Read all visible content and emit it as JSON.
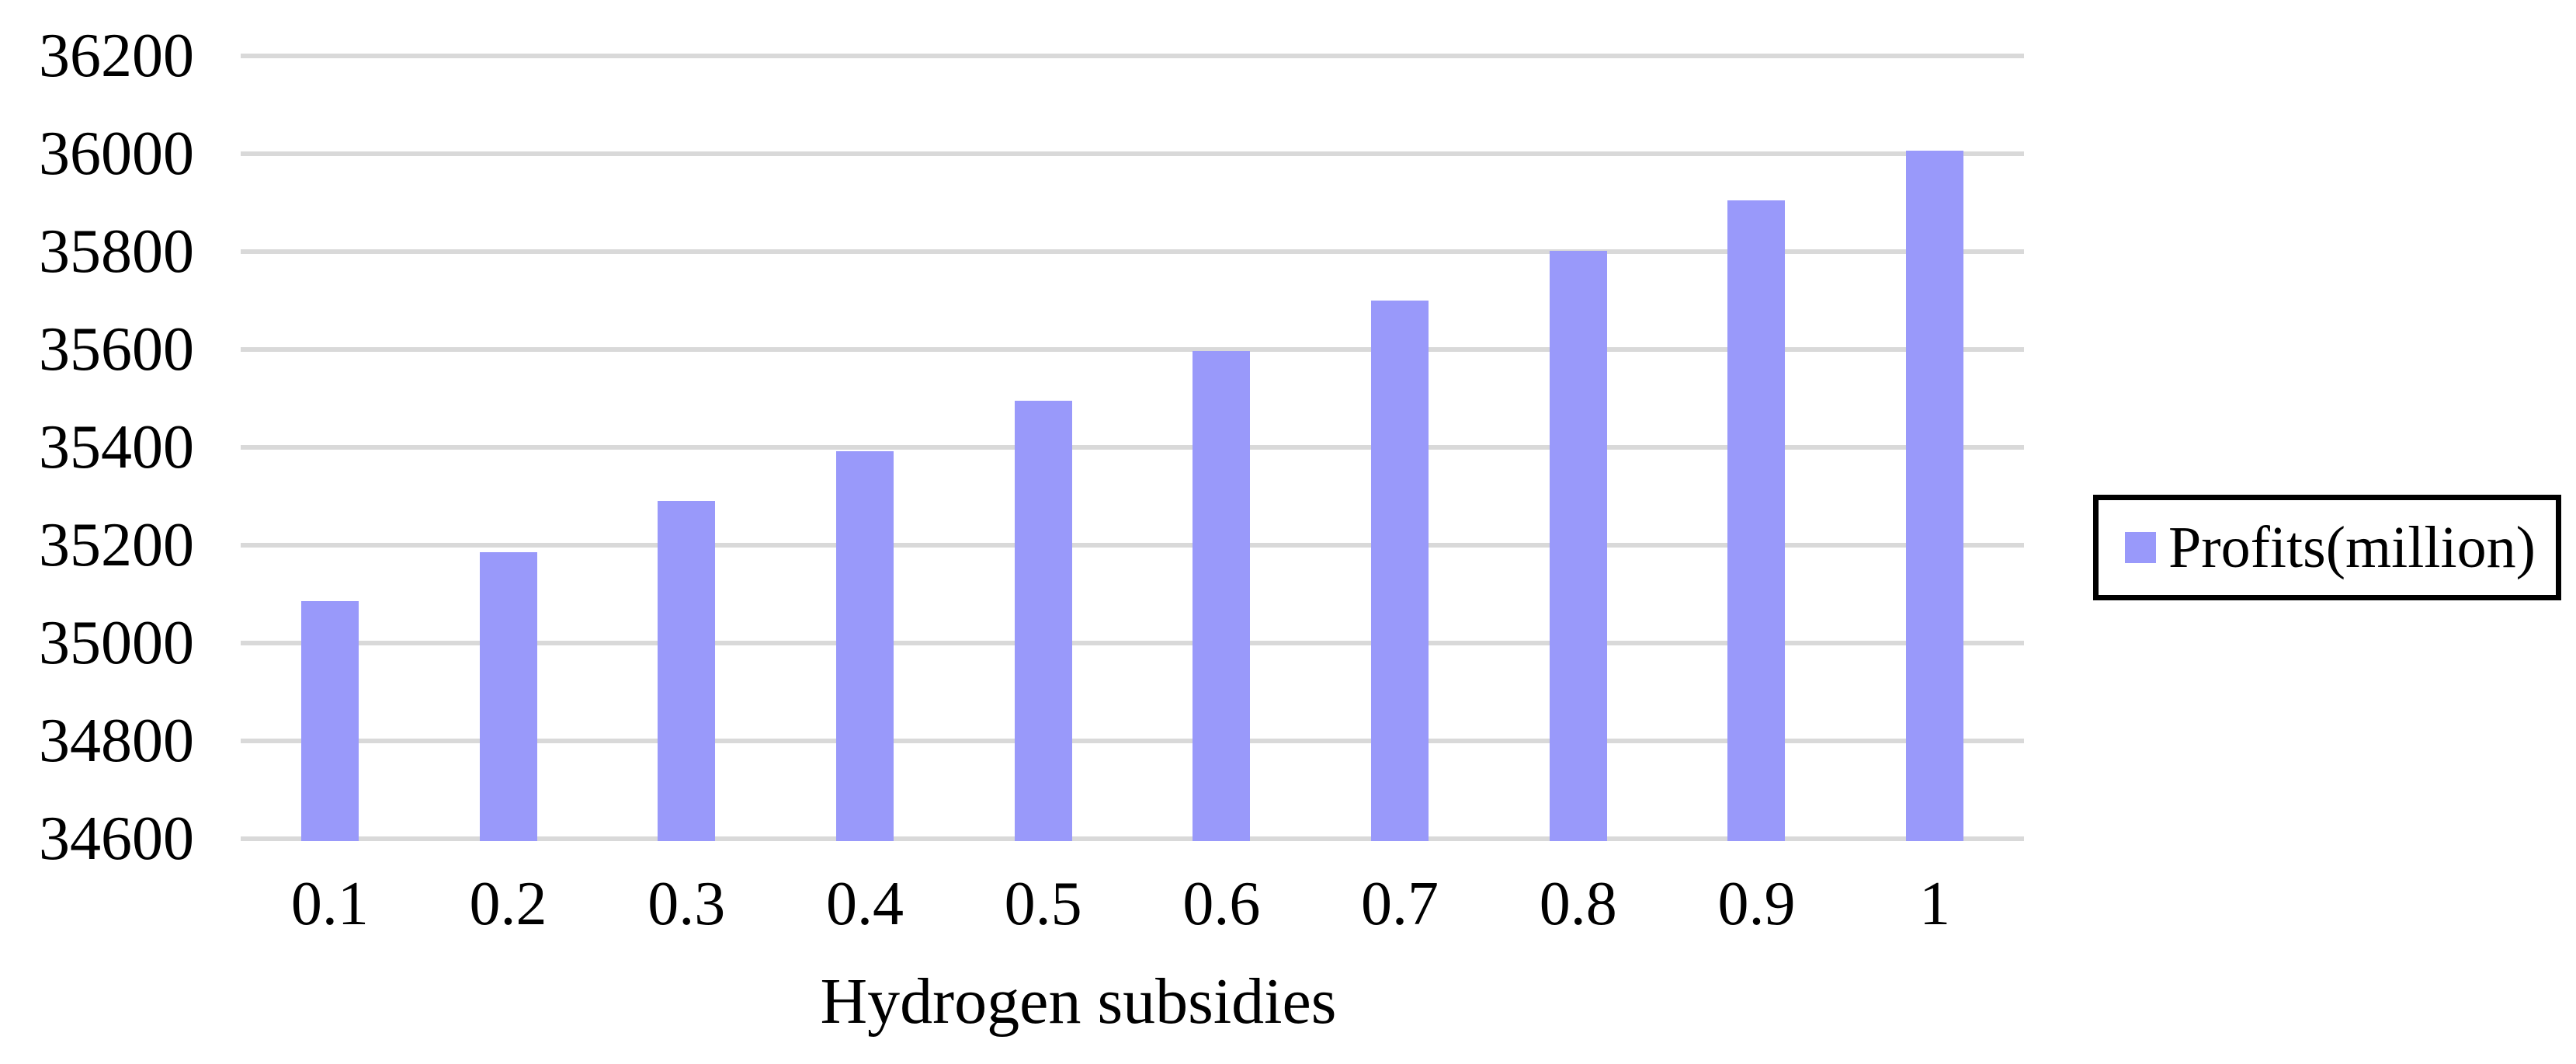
{
  "chart_data": {
    "type": "bar",
    "title": "",
    "categories": [
      "0.1",
      "0.2",
      "0.3",
      "0.4",
      "0.5",
      "0.6",
      "0.7",
      "0.8",
      "0.9",
      "1"
    ],
    "series": [
      {
        "name": "Profits(million)",
        "values": [
          35090,
          35191,
          35295,
          35397,
          35500,
          35602,
          35704,
          35806,
          35910,
          36011
        ]
      }
    ],
    "xlabel": "Hydrogen subsidies",
    "ylabel": "",
    "ylim": [
      34600,
      36200
    ],
    "yticks": [
      34600,
      34800,
      35000,
      35200,
      35400,
      35600,
      35800,
      36000,
      36200
    ],
    "grid": true,
    "legend_position": "right",
    "colors": {
      "bar": "#9999FA",
      "gridline": "#D9D9D9",
      "text": "#000000",
      "legend_border": "#000000",
      "background": "#FFFFFF"
    }
  }
}
